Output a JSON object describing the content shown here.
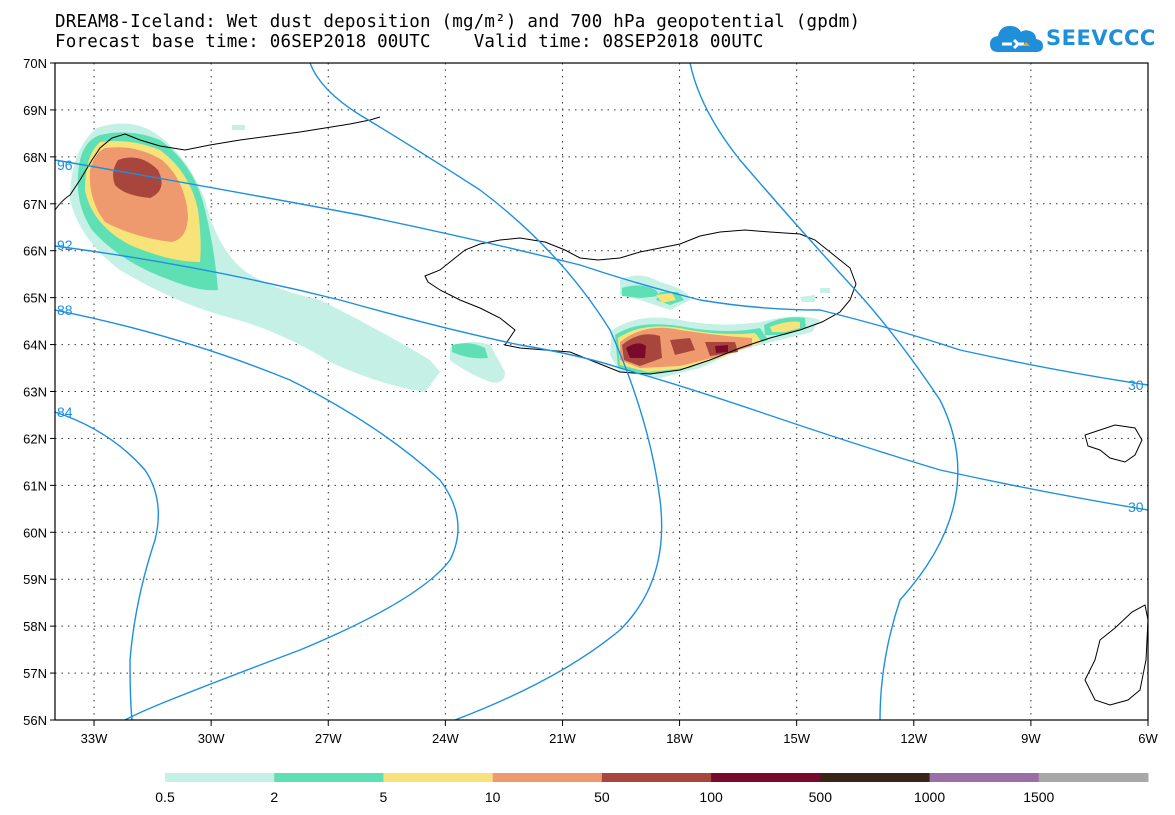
{
  "header": {
    "title_line1": "DREAM8-Iceland: Wet dust deposition (mg/m²) and 700 hPa geopotential (gpdm)",
    "title_line2": "Forecast base time: 06SEP2018 00UTC    Valid time: 08SEP2018 00UTC"
  },
  "logo": {
    "text": "SEEVCCC",
    "icon": "cloud-icon",
    "color": "#1e8fd8"
  },
  "map": {
    "lon_range": [
      -34,
      -6
    ],
    "lat_range": [
      56,
      70
    ],
    "lon_ticks": [
      {
        "v": -33,
        "label": "33W"
      },
      {
        "v": -30,
        "label": "30W"
      },
      {
        "v": -27,
        "label": "27W"
      },
      {
        "v": -24,
        "label": "24W"
      },
      {
        "v": -21,
        "label": "21W"
      },
      {
        "v": -18,
        "label": "18W"
      },
      {
        "v": -15,
        "label": "15W"
      },
      {
        "v": -12,
        "label": "12W"
      },
      {
        "v": -9,
        "label": "9W"
      },
      {
        "v": -6,
        "label": "6W"
      }
    ],
    "lat_ticks": [
      {
        "v": 70,
        "label": "70N"
      },
      {
        "v": 69,
        "label": "69N"
      },
      {
        "v": 68,
        "label": "68N"
      },
      {
        "v": 67,
        "label": "67N"
      },
      {
        "v": 66,
        "label": "66N"
      },
      {
        "v": 65,
        "label": "65N"
      },
      {
        "v": 64,
        "label": "64N"
      },
      {
        "v": 63,
        "label": "63N"
      },
      {
        "v": 62,
        "label": "62N"
      },
      {
        "v": 61,
        "label": "61N"
      },
      {
        "v": 60,
        "label": "60N"
      },
      {
        "v": 59,
        "label": "59N"
      },
      {
        "v": 58,
        "label": "58N"
      },
      {
        "v": 57,
        "label": "57N"
      },
      {
        "v": 56,
        "label": "56N"
      }
    ],
    "grid": "dotted",
    "contour_color": "#1e8fe0",
    "contour_labels": [
      "96",
      "92",
      "88",
      "84",
      "30",
      "30"
    ]
  },
  "colorbar": {
    "bins": [
      {
        "color": "#c4f0e6"
      },
      {
        "color": "#5fe0b4"
      },
      {
        "color": "#f8e37a"
      },
      {
        "color": "#ef9a6e"
      },
      {
        "color": "#a8463e"
      },
      {
        "color": "#7a0a2c"
      },
      {
        "color": "#3a2418"
      },
      {
        "color": "#9a6fa6"
      },
      {
        "color": "#a8a8a8"
      }
    ],
    "labels": [
      "0.5",
      "2",
      "5",
      "10",
      "50",
      "100",
      "500",
      "1000",
      "1500"
    ]
  }
}
